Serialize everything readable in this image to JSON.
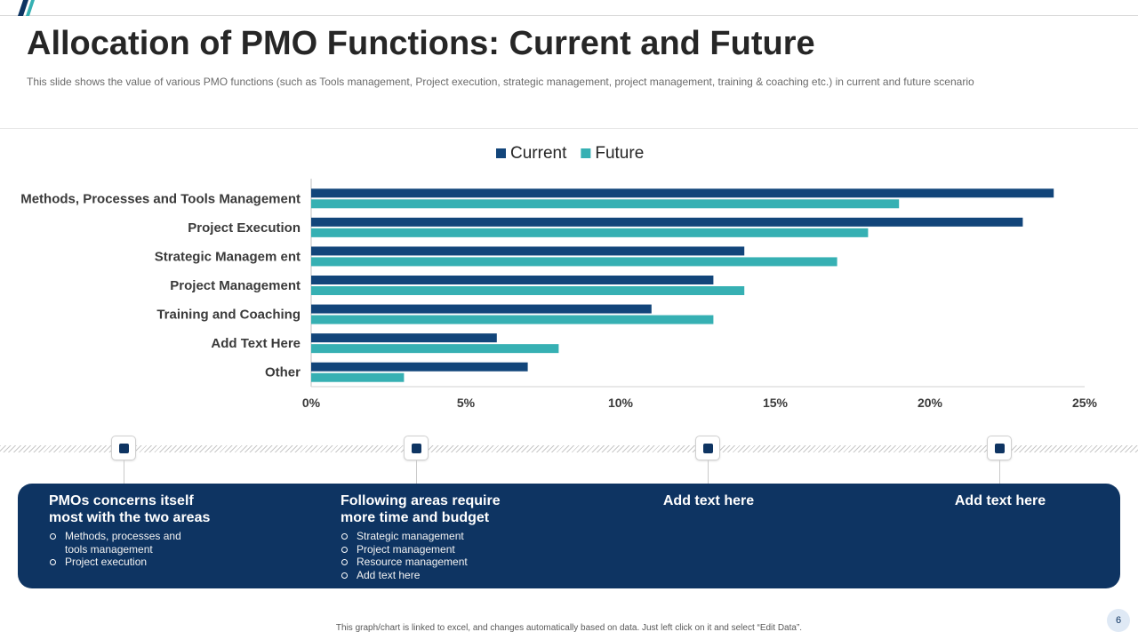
{
  "slide": {
    "title": "Allocation of PMO Functions: Current and Future",
    "subtitle": "This slide shows the value of various PMO functions (such as Tools management, Project execution, strategic management, project management, training & coaching etc.) in current and future scenario",
    "footnote": "This graph/chart is linked to excel, and changes automatically based on data. Just left click on it and select “Edit Data”.",
    "page_number": "6"
  },
  "colors": {
    "current": "#12457a",
    "future": "#36b0b3",
    "panel": "#0e3462",
    "logo_a": "#0e3462",
    "logo_b": "#36b0b3"
  },
  "chart_data": {
    "type": "bar",
    "orientation": "horizontal",
    "title": "",
    "legend_position": "top-center",
    "categories": [
      "Methods, Processes and Tools Management",
      "Project Execution",
      "Strategic Managem ent",
      "Project Management",
      "Training and Coaching",
      "Add Text Here",
      "Other"
    ],
    "series": [
      {
        "name": "Current",
        "values": [
          24,
          23,
          14,
          13,
          11,
          6,
          7
        ]
      },
      {
        "name": "Future",
        "values": [
          19,
          18,
          17,
          14,
          13,
          8,
          3
        ]
      }
    ],
    "xlim": [
      0,
      25
    ],
    "xticks": [
      0,
      5,
      10,
      15,
      20,
      25
    ],
    "tick_format": "%",
    "xlabel": "",
    "ylabel": "",
    "grid": false
  },
  "panel": {
    "columns": [
      {
        "heading": [
          "PMOs concerns itself",
          "most with the two areas"
        ],
        "items": [
          "Methods, processes and|tools management",
          "Project execution"
        ]
      },
      {
        "heading": [
          "Following areas require",
          "more time and budget"
        ],
        "items": [
          "Strategic management",
          "Project management",
          "Resource management",
          "Add text here"
        ]
      },
      {
        "heading": [
          "Add text here"
        ],
        "items": []
      },
      {
        "heading": [
          "Add text here"
        ],
        "items": []
      }
    ]
  }
}
